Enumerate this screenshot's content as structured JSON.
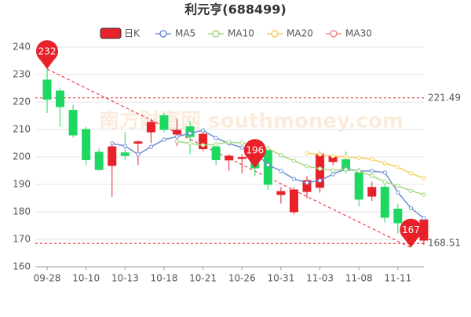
{
  "chart_data": {
    "type": "candlestick",
    "title": "利元亨(688499)",
    "categories": [
      "09-28",
      null,
      null,
      "10-10",
      null,
      null,
      "10-13",
      null,
      null,
      "10-18",
      null,
      null,
      "10-21",
      null,
      null,
      "10-26",
      null,
      null,
      "10-31",
      null,
      null,
      "11-03",
      null,
      null,
      "11-08",
      null,
      null,
      "11-11",
      null,
      null
    ],
    "candles_name": "日K",
    "up_color": "#e8202a",
    "down_color": "#1ed760",
    "candles": [
      {
        "open": 228,
        "close": 221,
        "high": 232,
        "low": 216
      },
      {
        "open": 224,
        "close": 218.3,
        "high": 225,
        "low": 211
      },
      {
        "open": 217,
        "close": 208,
        "high": 219,
        "low": 207
      },
      {
        "open": 210,
        "close": 199,
        "high": 211,
        "low": 197
      },
      {
        "open": 201.7,
        "close": 195.4,
        "high": 203,
        "low": 195
      },
      {
        "open": 196.9,
        "close": 203.7,
        "high": 205,
        "low": 185.5
      },
      {
        "open": 201.5,
        "close": 200.5,
        "high": 209,
        "low": 199
      },
      {
        "open": 205,
        "close": 205.5,
        "high": 206,
        "low": 197
      },
      {
        "open": 209.1,
        "close": 212.6,
        "high": 214,
        "low": 205
      },
      {
        "open": 215,
        "close": 210,
        "high": 216,
        "low": 209
      },
      {
        "open": 208.3,
        "close": 209.7,
        "high": 214,
        "low": 204
      },
      {
        "open": 211,
        "close": 207.4,
        "high": 213,
        "low": 201
      },
      {
        "open": 203,
        "close": 208.3,
        "high": 210,
        "low": 202
      },
      {
        "open": 203.7,
        "close": 199,
        "high": 205,
        "low": 197
      },
      {
        "open": 198.9,
        "close": 200.3,
        "high": 201,
        "low": 195
      },
      {
        "open": 199.4,
        "close": 199.8,
        "high": 201,
        "low": 194
      },
      {
        "open": 200.9,
        "close": 196,
        "high": 204,
        "low": 193
      },
      {
        "open": 202.3,
        "close": 190,
        "high": 204,
        "low": 188
      },
      {
        "open": 186.3,
        "close": 187.4,
        "high": 189,
        "low": 183
      },
      {
        "open": 180,
        "close": 188,
        "high": 189,
        "low": 179
      },
      {
        "open": 187.4,
        "close": 191.4,
        "high": 193,
        "low": 185
      },
      {
        "open": 188.9,
        "close": 201.1,
        "high": 202,
        "low": 187
      },
      {
        "open": 198.3,
        "close": 200.3,
        "high": 201,
        "low": 197
      },
      {
        "open": 199,
        "close": 195,
        "high": 202,
        "low": 194
      },
      {
        "open": 194.3,
        "close": 184.6,
        "high": 196,
        "low": 182
      },
      {
        "open": 185.7,
        "close": 188.9,
        "high": 191,
        "low": 184
      },
      {
        "open": 189,
        "close": 178,
        "high": 190,
        "low": 176
      },
      {
        "open": 181,
        "close": 176,
        "high": 183,
        "low": 172
      },
      {
        "open": 175.1,
        "close": 169.1,
        "high": 177,
        "low": 167
      },
      {
        "open": 169.7,
        "close": 177.1,
        "high": 178,
        "low": 168
      }
    ],
    "series": [
      {
        "name": "MA5",
        "color": "#6f8fd3",
        "values": [
          null,
          null,
          null,
          null,
          null,
          204.9,
          204,
          200.9,
          203.7,
          206.3,
          207.4,
          208.6,
          209.7,
          206.9,
          204.9,
          203.4,
          201.7,
          197.1,
          194.9,
          192,
          190.6,
          191.4,
          193.7,
          195.7,
          194.9,
          194.9,
          194.3,
          187.1,
          181.4,
          177.7
        ]
      },
      {
        "name": "MA10",
        "color": "#a3d77f",
        "values": [
          null,
          null,
          null,
          null,
          null,
          null,
          null,
          null,
          null,
          null,
          205.7,
          204.9,
          204.3,
          204.6,
          205.4,
          205.1,
          204.3,
          203.1,
          200.6,
          198.6,
          196.6,
          195.7,
          195.1,
          195.4,
          194.9,
          193.1,
          190.9,
          189.4,
          187.7,
          186.3
        ]
      },
      {
        "name": "MA20",
        "color": "#f7cd5c",
        "values": [
          null,
          null,
          null,
          null,
          null,
          null,
          null,
          null,
          null,
          null,
          null,
          null,
          null,
          null,
          null,
          null,
          null,
          null,
          null,
          null,
          201.4,
          200.9,
          200.3,
          200,
          199.7,
          199.1,
          197.7,
          196.3,
          194,
          192.3
        ]
      },
      {
        "name": "MA30",
        "color": "#f08a8a",
        "values": [
          null,
          null,
          null,
          null,
          null,
          null,
          null,
          null,
          null,
          null,
          null,
          null,
          null,
          null,
          null,
          null,
          null,
          null,
          null,
          null,
          null,
          null,
          null,
          null,
          null,
          null,
          null,
          null,
          null,
          null
        ]
      }
    ],
    "markers": [
      {
        "candle": 0,
        "value": 232
      },
      {
        "candle": 16,
        "value": 196
      },
      {
        "candle": 28,
        "value": 167
      }
    ],
    "ref_lines": [
      221.49,
      168.51
    ],
    "watermark": "南方财富网 southmoney.com",
    "ylim": [
      160,
      240
    ],
    "yticks": [
      160,
      170,
      180,
      190,
      200,
      210,
      220,
      230,
      240
    ],
    "grid": true
  }
}
